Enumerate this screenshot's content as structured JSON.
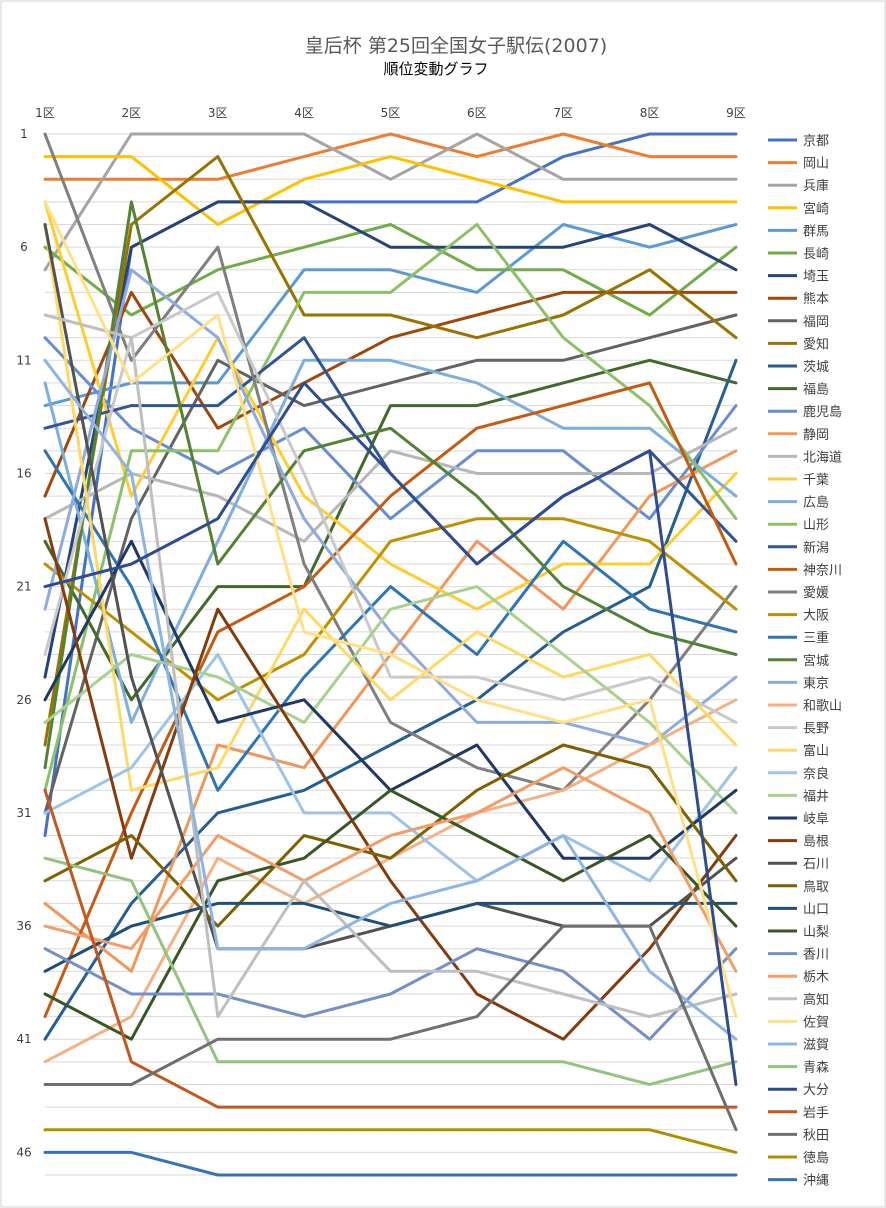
{
  "chart_data": {
    "type": "line",
    "title": "皇后杯 第25回全国女子駅伝(2007)",
    "subtitle": "順位変動グラフ",
    "categories": [
      "1区",
      "2区",
      "3区",
      "4区",
      "5区",
      "6区",
      "7区",
      "8区",
      "9区"
    ],
    "y_ticks": [
      1,
      6,
      11,
      16,
      21,
      26,
      31,
      36,
      41,
      46
    ],
    "ylim": [
      1,
      47
    ],
    "y_inverted": true,
    "grid": true,
    "legend_position": "right",
    "series": [
      {
        "name": "京都",
        "color": "#4472C4",
        "values": [
          32,
          6,
          4,
          4,
          4,
          4,
          2,
          1,
          1
        ]
      },
      {
        "name": "岡山",
        "color": "#ED7D31",
        "values": [
          3,
          3,
          3,
          2,
          1,
          2,
          1,
          2,
          2
        ]
      },
      {
        "name": "兵庫",
        "color": "#A5A5A5",
        "values": [
          7,
          1,
          1,
          1,
          3,
          1,
          3,
          3,
          3
        ]
      },
      {
        "name": "宮崎",
        "color": "#FFC000",
        "values": [
          2,
          2,
          5,
          3,
          2,
          3,
          4,
          4,
          4
        ]
      },
      {
        "name": "群馬",
        "color": "#5B9BD5",
        "values": [
          13,
          12,
          12,
          7,
          7,
          8,
          5,
          6,
          5
        ]
      },
      {
        "name": "長崎",
        "color": "#70AD47",
        "values": [
          6,
          9,
          7,
          6,
          5,
          7,
          7,
          9,
          6
        ]
      },
      {
        "name": "埼玉",
        "color": "#264478",
        "values": [
          25,
          6,
          4,
          4,
          6,
          6,
          6,
          5,
          7
        ]
      },
      {
        "name": "熊本",
        "color": "#9E480E",
        "values": [
          17,
          8,
          14,
          12,
          10,
          9,
          8,
          8,
          8
        ]
      },
      {
        "name": "福岡",
        "color": "#636363",
        "values": [
          31,
          18,
          11,
          13,
          12,
          11,
          11,
          10,
          9
        ]
      },
      {
        "name": "愛知",
        "color": "#997300",
        "values": [
          28,
          5,
          2,
          9,
          9,
          10,
          9,
          7,
          10
        ]
      },
      {
        "name": "茨城",
        "color": "#255E91",
        "values": [
          41,
          35,
          31,
          30,
          28,
          26,
          23,
          21,
          11
        ]
      },
      {
        "name": "福島",
        "color": "#43682B",
        "values": [
          19,
          26,
          21,
          21,
          13,
          13,
          12,
          11,
          12
        ]
      },
      {
        "name": "鹿児島",
        "color": "#698ED0",
        "values": [
          10,
          14,
          16,
          14,
          18,
          15,
          15,
          18,
          13
        ]
      },
      {
        "name": "静岡",
        "color": "#F1975A",
        "values": [
          35,
          38,
          28,
          29,
          24,
          19,
          22,
          17,
          15
        ]
      },
      {
        "name": "北海道",
        "color": "#B7B7B7",
        "values": [
          18,
          16,
          17,
          19,
          15,
          16,
          16,
          16,
          14
        ]
      },
      {
        "name": "千葉",
        "color": "#FFCD33",
        "values": [
          4,
          17,
          10,
          17,
          20,
          22,
          20,
          20,
          16
        ]
      },
      {
        "name": "広島",
        "color": "#7CAFDD",
        "values": [
          12,
          27,
          19,
          11,
          11,
          12,
          14,
          14,
          17
        ]
      },
      {
        "name": "山形",
        "color": "#8CC168",
        "values": [
          30,
          15,
          15,
          8,
          8,
          5,
          10,
          13,
          18
        ]
      },
      {
        "name": "新潟",
        "color": "#2F5597",
        "values": [
          14,
          13,
          13,
          10,
          16,
          20,
          17,
          15,
          19
        ]
      },
      {
        "name": "神奈川",
        "color": "#C55A11",
        "values": [
          40,
          31,
          23,
          21,
          17,
          14,
          13,
          12,
          20
        ]
      },
      {
        "name": "愛媛",
        "color": "#7F7F7F",
        "values": [
          1,
          11,
          6,
          20,
          27,
          29,
          30,
          26,
          21
        ]
      },
      {
        "name": "大阪",
        "color": "#BF9000",
        "values": [
          20,
          23,
          26,
          24,
          19,
          18,
          18,
          19,
          22
        ]
      },
      {
        "name": "三重",
        "color": "#2E75B6",
        "values": [
          15,
          21,
          30,
          25,
          21,
          24,
          19,
          22,
          23
        ]
      },
      {
        "name": "宮城",
        "color": "#548235",
        "values": [
          29,
          4,
          20,
          15,
          14,
          17,
          21,
          23,
          24
        ]
      },
      {
        "name": "東京",
        "color": "#8FAADC",
        "values": [
          22,
          7,
          10,
          18,
          23,
          27,
          27,
          28,
          25
        ]
      },
      {
        "name": "和歌山",
        "color": "#F4B183",
        "values": [
          42,
          40,
          33,
          35,
          33,
          31,
          30,
          28,
          26
        ]
      },
      {
        "name": "長野",
        "color": "#C9C9C9",
        "values": [
          24,
          10,
          8,
          16,
          25,
          25,
          26,
          25,
          27
        ]
      },
      {
        "name": "富山",
        "color": "#FFD966",
        "values": [
          5,
          30,
          29,
          22,
          26,
          23,
          25,
          24,
          28
        ]
      },
      {
        "name": "奈良",
        "color": "#9DC3E6",
        "values": [
          31,
          29,
          24,
          31,
          31,
          34,
          32,
          34,
          29
        ]
      },
      {
        "name": "福井",
        "color": "#A9D18E",
        "values": [
          27,
          24,
          25,
          27,
          22,
          21,
          24,
          27,
          31
        ]
      },
      {
        "name": "岐阜",
        "color": "#203864",
        "values": [
          26,
          19,
          27,
          26,
          30,
          28,
          33,
          33,
          30
        ]
      },
      {
        "name": "島根",
        "color": "#843C0C",
        "values": [
          18,
          33,
          22,
          28,
          34,
          39,
          41,
          37,
          32
        ]
      },
      {
        "name": "石川",
        "color": "#525252",
        "values": [
          5,
          25,
          37,
          37,
          36,
          35,
          36,
          36,
          33
        ]
      },
      {
        "name": "鳥取",
        "color": "#7F6000",
        "values": [
          34,
          32,
          36,
          32,
          33,
          30,
          28,
          29,
          34
        ]
      },
      {
        "name": "山口",
        "color": "#1F4E79",
        "values": [
          38,
          36,
          35,
          35,
          36,
          35,
          35,
          35,
          35
        ]
      },
      {
        "name": "山梨",
        "color": "#385723",
        "values": [
          39,
          41,
          34,
          33,
          30,
          32,
          34,
          32,
          36
        ]
      },
      {
        "name": "香川",
        "color": "#7590C7",
        "values": [
          37,
          39,
          39,
          40,
          39,
          37,
          38,
          41,
          37
        ]
      },
      {
        "name": "栃木",
        "color": "#F19D68",
        "values": [
          36,
          37,
          32,
          34,
          32,
          31,
          29,
          31,
          38
        ]
      },
      {
        "name": "高知",
        "color": "#BFBFBF",
        "values": [
          9,
          10,
          40,
          34,
          38,
          38,
          39,
          40,
          39
        ]
      },
      {
        "name": "佐賀",
        "color": "#FFE085",
        "values": [
          4,
          12,
          9,
          23,
          24,
          26,
          27,
          26,
          40
        ]
      },
      {
        "name": "滋賀",
        "color": "#8EB4E3",
        "values": [
          11,
          16,
          37,
          37,
          35,
          34,
          32,
          38,
          41
        ]
      },
      {
        "name": "青森",
        "color": "#93C47D",
        "values": [
          33,
          34,
          42,
          42,
          42,
          42,
          42,
          43,
          42
        ]
      },
      {
        "name": "大分",
        "color": "#2E4C8F",
        "values": [
          21,
          20,
          18,
          12,
          16,
          20,
          17,
          15,
          43
        ]
      },
      {
        "name": "岩手",
        "color": "#C0581F",
        "values": [
          30,
          42,
          44,
          44,
          44,
          44,
          44,
          44,
          44
        ]
      },
      {
        "name": "秋田",
        "color": "#6F6F6F",
        "values": [
          43,
          43,
          41,
          41,
          41,
          40,
          36,
          36,
          45
        ]
      },
      {
        "name": "徳島",
        "color": "#B38F00",
        "values": [
          45,
          45,
          45,
          45,
          45,
          45,
          45,
          45,
          46
        ]
      },
      {
        "name": "沖縄",
        "color": "#3474B5",
        "values": [
          46,
          46,
          47,
          47,
          47,
          47,
          47,
          47,
          47
        ]
      }
    ]
  }
}
